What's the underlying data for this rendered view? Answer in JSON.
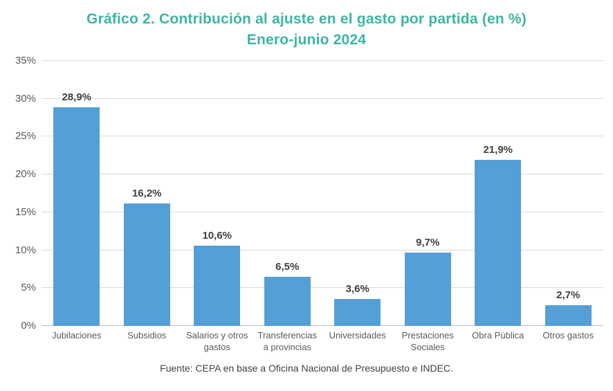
{
  "chart_data": {
    "type": "bar",
    "title": "Gráfico 2. Contribución al ajuste en el gasto por partida (en %)",
    "subtitle": "Enero-junio 2024",
    "categories": [
      "Jubilaciones",
      "Subsidios",
      "Salarios y otros gastos",
      "Transferencias a provincias",
      "Universidades",
      "Prestaciones Sociales",
      "Obra Pública",
      "Otros gastos"
    ],
    "values": [
      28.9,
      16.2,
      10.6,
      6.5,
      3.6,
      9.7,
      21.9,
      2.7
    ],
    "value_labels": [
      "28,9%",
      "16,2%",
      "10,6%",
      "6,5%",
      "3,6%",
      "9,7%",
      "21,9%",
      "2,7%"
    ],
    "y_ticks": [
      0,
      5,
      10,
      15,
      20,
      25,
      30,
      35
    ],
    "y_tick_labels": [
      "0%",
      "5%",
      "10%",
      "15%",
      "20%",
      "25%",
      "30%",
      "35%"
    ],
    "ylim": [
      0,
      35
    ],
    "xlabel": "",
    "ylabel": "",
    "grid": true,
    "legend": "none",
    "bar_color": "#559FD8",
    "title_color": "#3BB6A4",
    "source": "Fuente: CEPA en base a Oficina Nacional de Presupuesto e INDEC."
  }
}
